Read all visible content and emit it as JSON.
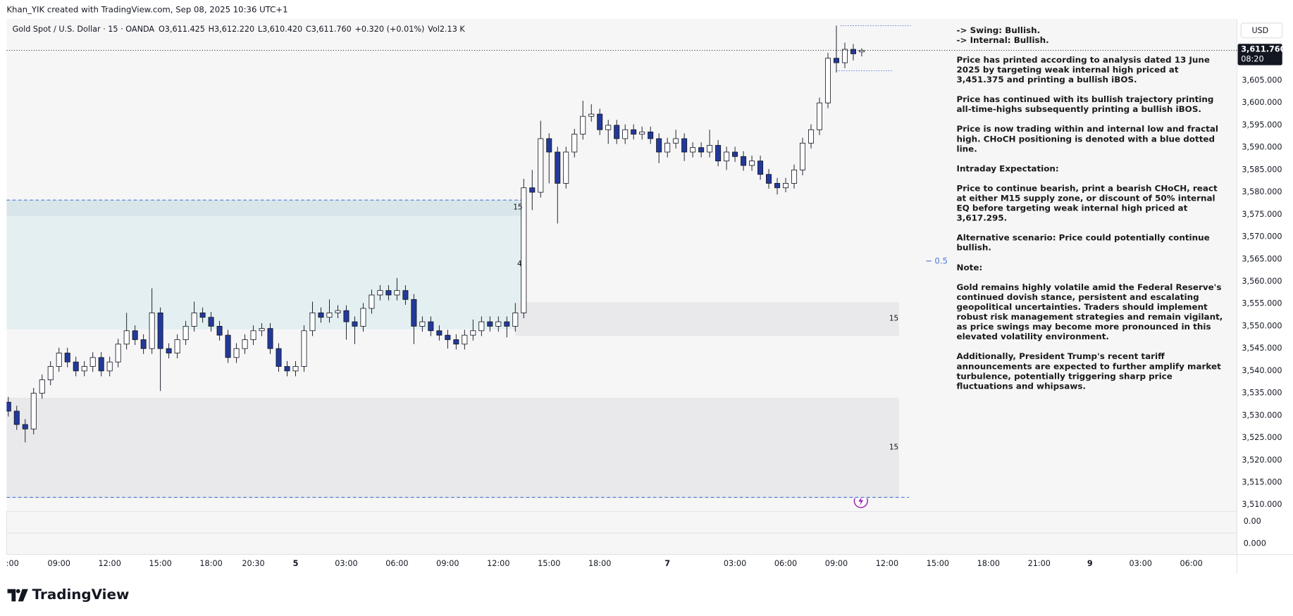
{
  "header": {
    "author_line": "Khan_YIK created with TradingView.com, Sep 08, 2025 10:36 UTC+1",
    "symbol": "Gold Spot / U.S. Dollar · 15 · OANDA",
    "ohlc": [
      {
        "key": "O",
        "value": "3,611.425"
      },
      {
        "key": "H",
        "value": "3,612.220"
      },
      {
        "key": "L",
        "value": "3,610.420"
      },
      {
        "key": "C",
        "value": "3,611.760"
      }
    ],
    "change": "+0.320 (+0.01%)",
    "volume": "Vol2.13 K",
    "currency": "USD"
  },
  "chart_data": {
    "type": "candlestick",
    "xlim": [
      -0.2,
      145.4
    ],
    "ylim": [
      3508.5,
      3618.8
    ],
    "grid": false,
    "up_color": "#ffffff",
    "down_color": "#23399a",
    "wick_color": "#131722",
    "open": [
      3533,
      3531,
      3528,
      3527,
      3535,
      3538,
      3541,
      3544,
      3542,
      3540,
      3541,
      3543,
      3540,
      3542,
      3546,
      3549,
      3547,
      3545,
      3553,
      3545,
      3544,
      3547,
      3550,
      3553,
      3552,
      3550,
      3548,
      3543,
      3545,
      3547,
      3549,
      3549.5,
      3545,
      3541,
      3540,
      3541,
      3549,
      3553,
      3552,
      3553,
      3553.5,
      3551,
      3550,
      3554,
      3557,
      3558,
      3557,
      3558,
      3556,
      3550,
      3551,
      3549,
      3548,
      3547,
      3546,
      3548,
      3549,
      3551,
      3550,
      3551,
      3550,
      3553,
      3581,
      3580,
      3592,
      3589,
      3582,
      3589,
      3593,
      3597,
      3597.5,
      3594,
      3595,
      3592,
      3594,
      3593,
      3593.5,
      3592,
      3589,
      3591,
      3592,
      3589,
      3590,
      3589,
      3590.5,
      3587,
      3589,
      3588,
      3586,
      3587,
      3584,
      3582,
      3581,
      3582,
      3585,
      3591,
      3594,
      3600,
      3610,
      3609,
      3612,
      3611.425
    ],
    "high": [
      3534.2,
      3532.2,
      3529.2,
      3536.2,
      3539.2,
      3542.2,
      3545.2,
      3545.2,
      3543.2,
      3542.2,
      3544.2,
      3544.2,
      3543.2,
      3547.2,
      3553,
      3550.2,
      3548.2,
      3558.5,
      3554.2,
      3546.2,
      3548.2,
      3551.2,
      3555.5,
      3554.2,
      3553.2,
      3551.2,
      3549.2,
      3546.2,
      3548.2,
      3550.2,
      3550.7,
      3550.7,
      3546.2,
      3542.2,
      3542.2,
      3550.2,
      3555.5,
      3554.2,
      3556,
      3554.7,
      3554.7,
      3552.2,
      3555.2,
      3558.2,
      3559.2,
      3559.2,
      3560.8,
      3559.2,
      3557.2,
      3552.2,
      3552.2,
      3550.2,
      3549.2,
      3548.2,
      3549.2,
      3551.5,
      3552.2,
      3552.2,
      3552.2,
      3552.2,
      3555.2,
      3583,
      3585,
      3596,
      3593.2,
      3590.2,
      3590.2,
      3594.2,
      3600.5,
      3599.7,
      3598.7,
      3596.2,
      3596.2,
      3595.2,
      3595.2,
      3594.7,
      3594.7,
      3593.2,
      3592.2,
      3594,
      3593.2,
      3591.2,
      3591.2,
      3594,
      3591.7,
      3590.2,
      3590.2,
      3589.2,
      3588.2,
      3588.2,
      3585.2,
      3583.2,
      3583.2,
      3586.2,
      3592.2,
      3595.2,
      3601.2,
      3611.2,
      3617.3,
      3613.5,
      3613.2,
      3612.22
    ],
    "low": [
      3529.8,
      3526.8,
      3524,
      3525.8,
      3533.8,
      3536.8,
      3539.8,
      3540.8,
      3538.8,
      3538.8,
      3539.8,
      3538.8,
      3538.8,
      3540.8,
      3544.8,
      3545.8,
      3543.8,
      3543.8,
      3535.5,
      3542.8,
      3542.8,
      3545.8,
      3548.8,
      3550.8,
      3548.8,
      3546.8,
      3541.8,
      3541.8,
      3543.8,
      3545.8,
      3547.8,
      3543.8,
      3539.8,
      3538.8,
      3538.8,
      3539.8,
      3547.8,
      3550.8,
      3550.8,
      3551.8,
      3547,
      3546,
      3548.8,
      3552.8,
      3555.8,
      3555.8,
      3555.8,
      3554.8,
      3546,
      3548.8,
      3547.8,
      3546.8,
      3545,
      3544.8,
      3544.8,
      3546.8,
      3547.8,
      3548.8,
      3548.8,
      3547.5,
      3548.8,
      3551.8,
      3576,
      3578.8,
      3582,
      3573,
      3580.8,
      3587.8,
      3591.8,
      3595.8,
      3592.8,
      3590.8,
      3590.8,
      3590.8,
      3591.8,
      3591.8,
      3590.8,
      3586.5,
      3587.8,
      3589.8,
      3587,
      3587.8,
      3587.8,
      3587.8,
      3585.8,
      3585,
      3586.8,
      3584.8,
      3584.8,
      3582.8,
      3580.8,
      3579.5,
      3580,
      3580.8,
      3583.8,
      3589.8,
      3592.8,
      3598.8,
      3606.8,
      3607.8,
      3609.5,
      3610.42
    ],
    "close": [
      3531,
      3528,
      3527,
      3535,
      3538,
      3541,
      3544,
      3542,
      3540,
      3541,
      3543,
      3540,
      3542,
      3546,
      3549,
      3547,
      3545,
      3553,
      3545,
      3544,
      3547,
      3550,
      3553,
      3552,
      3550,
      3548,
      3543,
      3545,
      3547,
      3549,
      3549.5,
      3545,
      3541,
      3540,
      3541,
      3549,
      3553,
      3552,
      3553,
      3553.5,
      3551,
      3550,
      3554,
      3557,
      3558,
      3557,
      3558,
      3556,
      3550,
      3551,
      3549,
      3548,
      3547,
      3546,
      3548,
      3549,
      3551,
      3550,
      3551,
      3550,
      3553,
      3581,
      3580,
      3592,
      3589,
      3582,
      3589,
      3593,
      3597,
      3597.5,
      3594,
      3595,
      3592,
      3594,
      3593,
      3593.5,
      3592,
      3589,
      3591,
      3592,
      3589,
      3590,
      3589,
      3590.5,
      3587,
      3589,
      3588,
      3586,
      3587,
      3584,
      3582,
      3581,
      3582,
      3585,
      3591,
      3594,
      3600,
      3610,
      3609,
      3612,
      3611,
      3611.76
    ],
    "yticks": [
      {
        "value": 3510,
        "label": "3,510.000"
      },
      {
        "value": 3515,
        "label": "3,515.000"
      },
      {
        "value": 3520,
        "label": "3,520.000"
      },
      {
        "value": 3525,
        "label": "3,525.000"
      },
      {
        "value": 3530,
        "label": "3,530.000"
      },
      {
        "value": 3535,
        "label": "3,535.000"
      },
      {
        "value": 3540,
        "label": "3,540.000"
      },
      {
        "value": 3545,
        "label": "3,545.000"
      },
      {
        "value": 3550,
        "label": "3,550.000"
      },
      {
        "value": 3555,
        "label": "3,555.000"
      },
      {
        "value": 3560,
        "label": "3,560.000"
      },
      {
        "value": 3565,
        "label": "3,565.000"
      },
      {
        "value": 3570,
        "label": "3,570.000"
      },
      {
        "value": 3575,
        "label": "3,575.000"
      },
      {
        "value": 3580,
        "label": "3,580.000"
      },
      {
        "value": 3585,
        "label": "3,585.000"
      },
      {
        "value": 3590,
        "label": "3,590.000"
      },
      {
        "value": 3595,
        "label": "3,595.000"
      },
      {
        "value": 3600,
        "label": "3,600.000"
      },
      {
        "value": 3605,
        "label": "3,605.000"
      }
    ],
    "xticks": [
      {
        "value": 0.5,
        "label": ":00"
      },
      {
        "value": 6,
        "label": "09:00"
      },
      {
        "value": 12,
        "label": "12:00"
      },
      {
        "value": 18,
        "label": "15:00"
      },
      {
        "value": 24,
        "label": "18:00"
      },
      {
        "value": 29,
        "label": "20:30"
      },
      {
        "value": 34,
        "label": "5"
      },
      {
        "value": 40,
        "label": "03:00"
      },
      {
        "value": 46,
        "label": "06:00"
      },
      {
        "value": 52,
        "label": "09:00"
      },
      {
        "value": 58,
        "label": "12:00"
      },
      {
        "value": 64,
        "label": "15:00"
      },
      {
        "value": 70,
        "label": "18:00"
      },
      {
        "value": 78,
        "label": "7"
      },
      {
        "value": 86,
        "label": "03:00"
      },
      {
        "value": 92,
        "label": "06:00"
      },
      {
        "value": 98,
        "label": "09:00"
      },
      {
        "value": 104,
        "label": "12:00"
      },
      {
        "value": 110,
        "label": "15:00"
      },
      {
        "value": 116,
        "label": "18:00"
      },
      {
        "value": 122,
        "label": "21:00"
      },
      {
        "value": 128,
        "label": "9"
      },
      {
        "value": 134,
        "label": "03:00"
      },
      {
        "value": 140,
        "label": "06:00"
      }
    ],
    "zones": [
      {
        "from": -0.2,
        "to": 61,
        "top": 3578.25,
        "bottom": 3549.3,
        "color": "#e3eff1"
      },
      {
        "from": -0.2,
        "to": 61,
        "top": 3578.25,
        "bottom": 3574.7,
        "color": "#d9e6e9"
      },
      {
        "from": 60,
        "to": 105.4,
        "top": 3555.4,
        "bottom": 3547.8,
        "color": "#e9e9eb"
      },
      {
        "from": -0.2,
        "to": 105.4,
        "top": 3534,
        "bottom": 3511.5,
        "color": "#e9e9eb"
      }
    ],
    "levels": [
      {
        "price": 3578.25,
        "from": -0.2,
        "to": 61,
        "style": "dashed",
        "color": "#4a78d8"
      },
      {
        "price": 3511.7,
        "from": -0.2,
        "to": 106.6,
        "style": "dashed",
        "color": "#4a78d8"
      },
      {
        "price": 3617.295,
        "from": 98.5,
        "to": 106.8,
        "style": "dotted",
        "color": "#4a78d8"
      },
      {
        "price": 3607.2,
        "from": 98,
        "to": 104.7,
        "style": "dotted",
        "color": "#4a78d8"
      }
    ],
    "zone_labels": [
      {
        "text": "15",
        "x": 60.3,
        "price": 3576.6,
        "color": "#131722"
      },
      {
        "text": "4",
        "x": 60.5,
        "price": 3563.9,
        "color": "#131722"
      },
      {
        "text": "15",
        "x": 104.8,
        "price": 3551.7,
        "color": "#131722"
      },
      {
        "text": "15",
        "x": 104.8,
        "price": 3522.9,
        "color": "#131722"
      },
      {
        "text": "0.5",
        "x": 110.4,
        "price": 3564.6,
        "color": "#4a78d8"
      }
    ],
    "price_label": "3,611.760",
    "countdown": "08:20",
    "lower_panes": [
      "0.00",
      "0.000"
    ]
  },
  "notes": [
    [
      "-> Swing: Bullish.",
      "-> Internal: Bullish."
    ],
    [
      "Price has printed according to analysis dated 13 June",
      "2025 by targeting weak internal high priced at",
      "3,451.375 and printing a bullish iBOS."
    ],
    [
      "Price has continued with its bullish trajectory printing",
      "all-time-highs subsequently printing a bullish iBOS."
    ],
    [
      "Price is now trading within and internal low and fractal",
      "high. CHoCH positioning is denoted with a blue dotted",
      "line."
    ],
    [
      "Intraday Expectation:"
    ],
    [
      "Price to continue bearish, print a bearish CHoCH, react",
      "at either  M15 supply zone, or discount of 50% internal",
      "EQ before targeting weak internal high priced at",
      "3,617.295."
    ],
    [
      "Alternative scenario: Price could potentially continue",
      "bullish."
    ],
    [
      "Note:"
    ],
    [
      "Gold remains highly volatile amid the Federal Reserve's",
      "continued dovish stance, persistent and escalating",
      "geopolitical uncertainties. Traders should implement",
      "robust risk management strategies and remain vigilant,",
      "as price swings may become more pronounced in this",
      "elevated volatility environment."
    ],
    [
      "Additionally, President Trump's recent tariff",
      "announcements are expected to further amplify market",
      "turbulence, potentially triggering sharp price",
      "fluctuations and whipsaws."
    ]
  ],
  "footer": {
    "logo": "TradingView"
  }
}
